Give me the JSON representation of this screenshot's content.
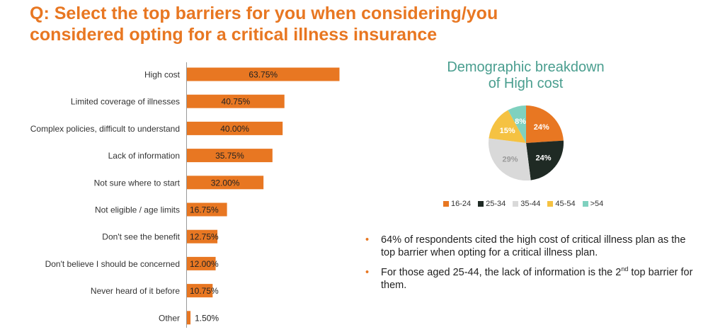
{
  "title": "Q: Select the top barriers for you when considering/you considered opting for a critical illness insurance",
  "colors": {
    "accent": "#e87722",
    "teal": "#4a9e8f",
    "dark": "#1f2a24",
    "grey": "#d9d9d9",
    "yellow": "#f5c242",
    "mint": "#7fd1bf"
  },
  "chart_data": [
    {
      "type": "bar",
      "orientation": "horizontal",
      "categories": [
        "High cost",
        "Limited coverage of illnesses",
        "Complex policies, difficult to understand",
        "Lack of information",
        "Not sure where to start",
        "Not eligible / age limits",
        "Don't see the benefit",
        "Don't believe I should be concerned",
        "Never heard of it before",
        "Other"
      ],
      "values": [
        63.75,
        40.75,
        40.0,
        35.75,
        32.0,
        16.75,
        12.75,
        12.0,
        10.75,
        1.5
      ],
      "labels": [
        "63.75%",
        "40.75%",
        "40.00%",
        "35.75%",
        "32.00%",
        "16.75%",
        "12.75%",
        "12.00%",
        "10.75%",
        "1.50%"
      ],
      "xlim": [
        0,
        100
      ],
      "grid": false
    },
    {
      "type": "pie",
      "title": "Demographic breakdown of High cost",
      "categories": [
        "16-24",
        "25-34",
        "35-44",
        "45-54",
        ">54"
      ],
      "values": [
        24,
        24,
        29,
        15,
        8
      ],
      "labels": [
        "24%",
        "24%",
        "29%",
        "15%",
        "8%"
      ],
      "colors": [
        "#e87722",
        "#1f2a24",
        "#d9d9d9",
        "#f5c242",
        "#7fd1bf"
      ],
      "legend_position": "bottom"
    }
  ],
  "pie_title": {
    "line1": "Demographic breakdown",
    "line2": "of High cost"
  },
  "bullets": {
    "item1": "64% of respondents cited the high cost of critical illness plan as the top barrier when opting for a critical illness plan.",
    "item2_before": "For those aged 25-44, the lack of information is the 2",
    "item2_sup": "nd",
    "item2_after": " top barrier for them.",
    "marker": "•"
  }
}
